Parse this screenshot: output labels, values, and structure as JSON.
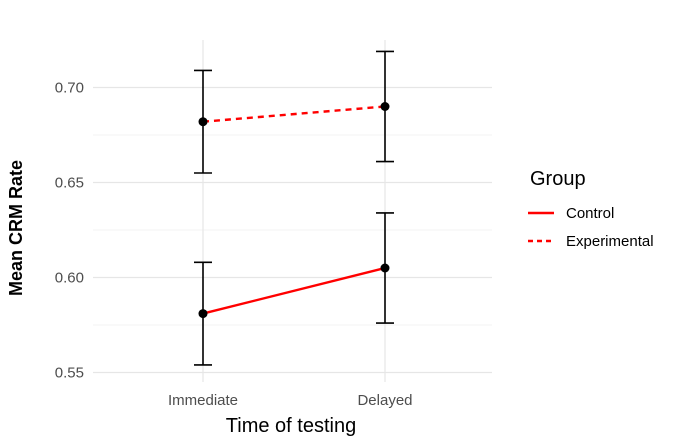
{
  "chart_data": {
    "type": "line",
    "title": "",
    "xlabel": "Time of testing",
    "ylabel": "Mean CRM Rate",
    "categories": [
      "Immediate",
      "Delayed"
    ],
    "ylim": [
      0.545,
      0.725
    ],
    "yticks": [
      "0.55",
      "0.60",
      "0.65",
      "0.70"
    ],
    "grid": true,
    "legend": {
      "title": "Group",
      "position": "right"
    },
    "series": [
      {
        "name": "Control",
        "color": "#ff0000",
        "linestyle": "solid",
        "values": [
          0.581,
          0.605
        ],
        "error_low": [
          0.554,
          0.576
        ],
        "error_high": [
          0.608,
          0.634
        ]
      },
      {
        "name": "Experimental",
        "color": "#ff0000",
        "linestyle": "dashed",
        "values": [
          0.682,
          0.69
        ],
        "error_low": [
          0.655,
          0.661
        ],
        "error_high": [
          0.709,
          0.719
        ]
      }
    ]
  }
}
